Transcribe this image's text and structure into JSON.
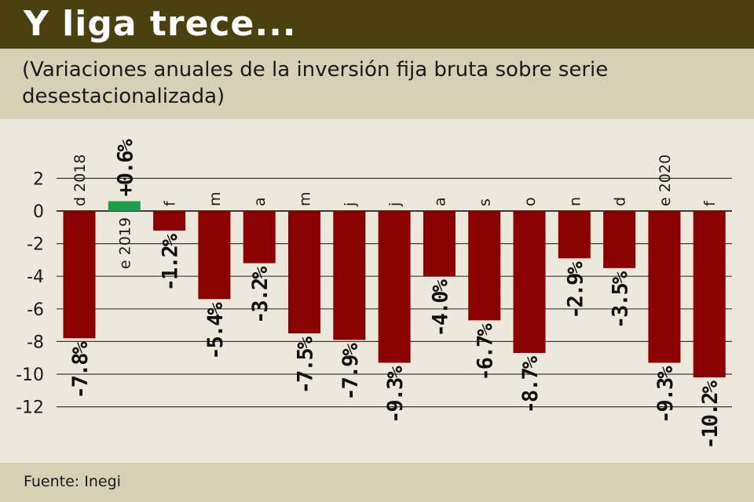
{
  "title": "Y liga trece...",
  "subtitle": "(Variaciones anuales de la inversión fija bruta sobre serie desestacionalizada)",
  "source": "Fuente: Inegi",
  "colors": {
    "negative": "#8b0000",
    "positive": "#1e9e4a",
    "title_bg": "#4a4010",
    "band_bg": "#d5d0b6",
    "chart_bg": "#ece9dc"
  },
  "chart_data": {
    "type": "bar",
    "categories": [
      "d 2018",
      "e 2019",
      "f",
      "m",
      "a",
      "m",
      "j",
      "j",
      "a",
      "s",
      "o",
      "n",
      "d",
      "e 2020",
      "f"
    ],
    "values": [
      -7.8,
      0.6,
      -1.2,
      -5.4,
      -3.2,
      -7.5,
      -7.9,
      -9.3,
      -4.0,
      -6.7,
      -8.7,
      -2.9,
      -3.5,
      -9.3,
      -10.2
    ],
    "data_labels": [
      "-7.8%",
      "+0.6%",
      "-1.2%",
      "-5.4%",
      "-3.2%",
      "-7.5%",
      "-7.9%",
      "-9.3%",
      "-4.0%",
      "-6.7%",
      "-8.7%",
      "-2.9%",
      "-3.5%",
      "-9.3%",
      "-10.2%"
    ],
    "y_ticks": [
      2,
      0,
      -2,
      -4,
      -6,
      -8,
      -10,
      -12
    ],
    "ylim": [
      -12,
      2
    ],
    "grid": true
  }
}
